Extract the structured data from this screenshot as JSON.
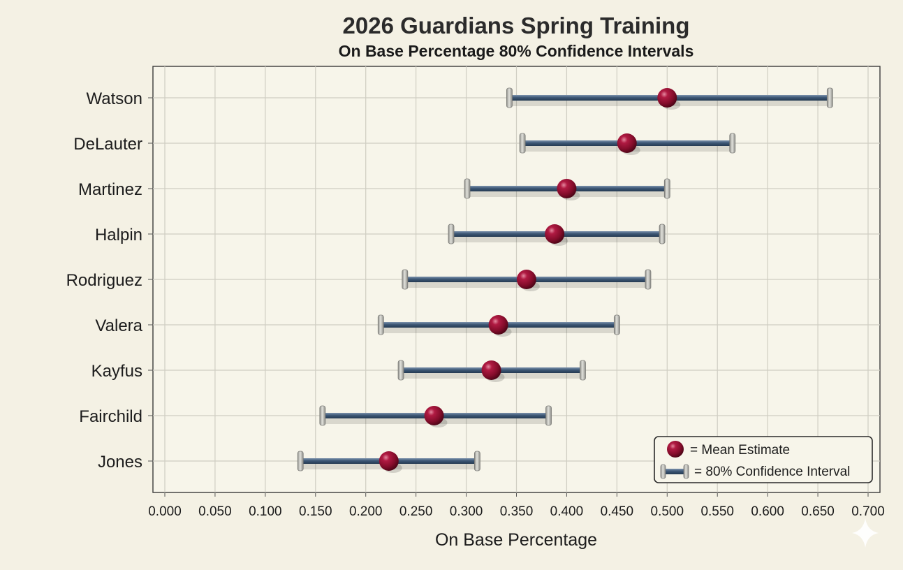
{
  "chart_data": {
    "type": "scatter",
    "title": "2026 Guardians Spring Training",
    "subtitle": "On Base Percentage 80% Confidence Intervals",
    "xlabel": "On Base Percentage",
    "ylabel": "",
    "xlim": [
      0.0,
      0.7
    ],
    "xticks": [
      "0.000",
      "0.050",
      "0.100",
      "0.150",
      "0.200",
      "0.250",
      "0.300",
      "0.350",
      "0.400",
      "0.450",
      "0.500",
      "0.550",
      "0.600",
      "0.650",
      "0.700"
    ],
    "grid": true,
    "legend_position": "bottom-right",
    "legend": {
      "mean": "= Mean Estimate",
      "interval": "= 80% Confidence Interval"
    },
    "players": [
      {
        "name": "Watson",
        "mean": 0.5,
        "low": 0.343,
        "high": 0.662
      },
      {
        "name": "DeLauter",
        "mean": 0.46,
        "low": 0.356,
        "high": 0.565
      },
      {
        "name": "Martinez",
        "mean": 0.4,
        "low": 0.301,
        "high": 0.5
      },
      {
        "name": "Halpin",
        "mean": 0.388,
        "low": 0.285,
        "high": 0.495
      },
      {
        "name": "Rodriguez",
        "mean": 0.36,
        "low": 0.239,
        "high": 0.481
      },
      {
        "name": "Valera",
        "mean": 0.332,
        "low": 0.215,
        "high": 0.45
      },
      {
        "name": "Kayfus",
        "mean": 0.325,
        "low": 0.235,
        "high": 0.416
      },
      {
        "name": "Fairchild",
        "mean": 0.268,
        "low": 0.157,
        "high": 0.382
      },
      {
        "name": "Jones",
        "mean": 0.223,
        "low": 0.135,
        "high": 0.311
      }
    ],
    "colors": {
      "mean_point": "#8e1030",
      "interval_bar": "#3d5775",
      "end_cap": "#b5b5b0",
      "grid": "#cfcdc2",
      "background": "#f4f1e4",
      "plot_background": "#f7f5ea"
    }
  }
}
